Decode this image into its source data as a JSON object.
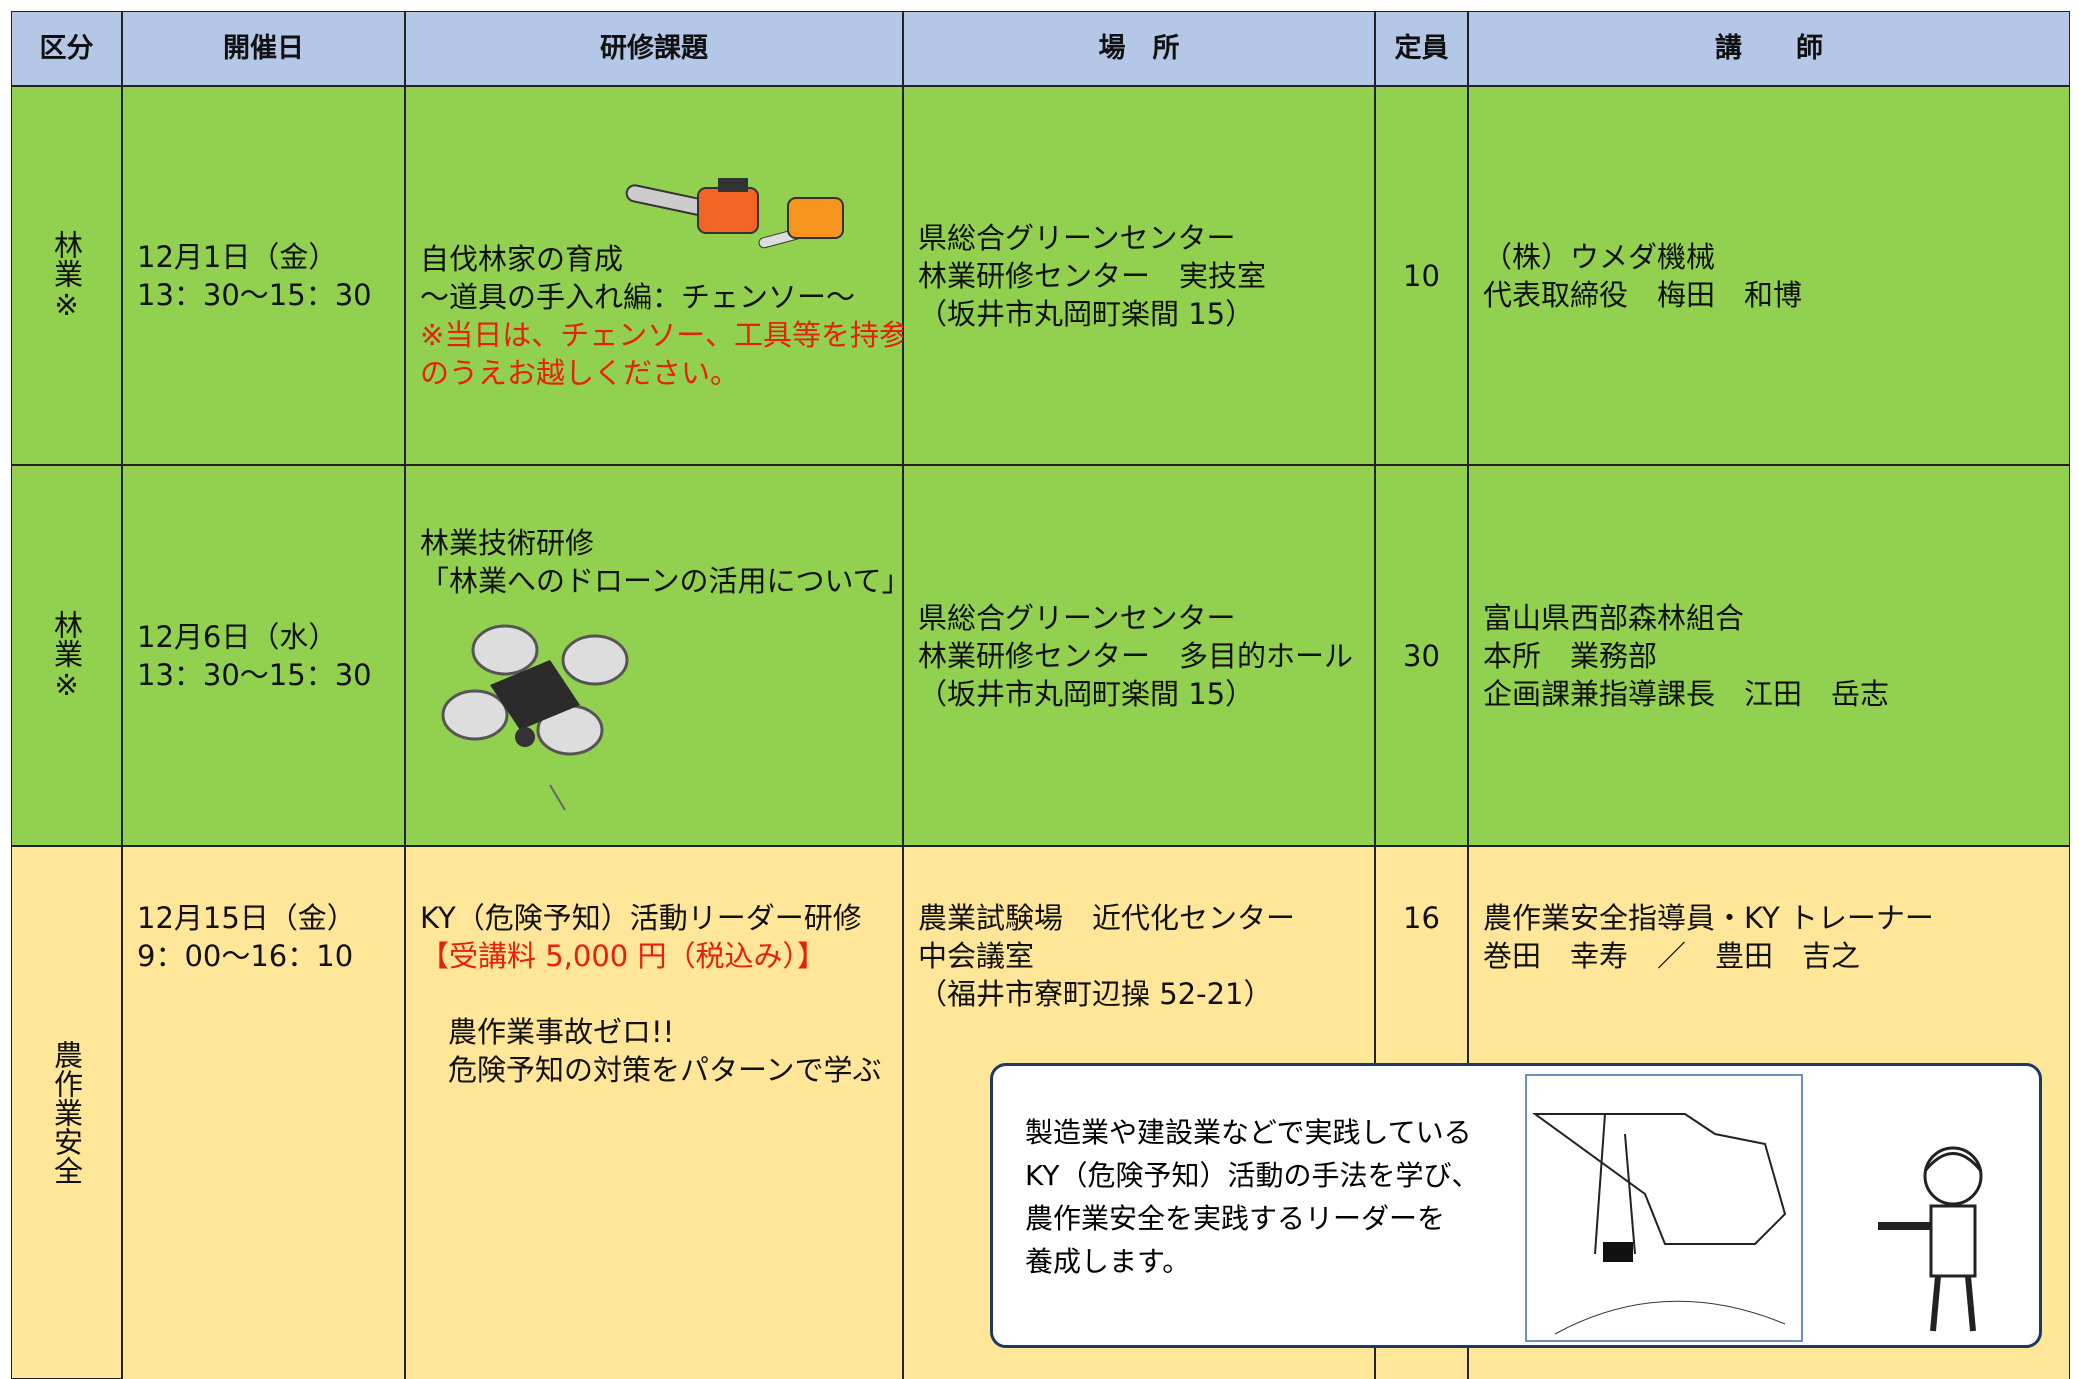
{
  "header": [
    "区分",
    "開催日",
    "研修課題",
    "場　所",
    "定員",
    "講　　師"
  ],
  "rows": [
    {
      "category": "林業※",
      "date": [
        "12月1日（金）",
        "13：30～15：30"
      ],
      "topic": [
        "自伐林家の育成",
        "～道具の手入れ編：チェンソー～"
      ],
      "note": [
        "※当日は、チェンソー、工具等を持参",
        "のうえお越しください。"
      ],
      "place": [
        "県総合グリーンセンター",
        "林業研修センター　実技室",
        "（坂井市丸岡町楽間 15）"
      ],
      "capacity": "10",
      "instructor": [
        "（株）ウメダ機械",
        "代表取締役　梅田　和博"
      ]
    },
    {
      "category": "林業※",
      "date": [
        "12月6日（水）",
        "13：30～15：30"
      ],
      "topic": [
        "林業技術研修",
        "「林業へのドローンの活用について」"
      ],
      "note": [],
      "place": [
        "県総合グリーンセンター",
        "林業研修センター　多目的ホール",
        "（坂井市丸岡町楽間 15）"
      ],
      "capacity": "30",
      "instructor": [
        "富山県西部森林組合",
        "本所　業務部",
        "企画課兼指導課長　江田　岳志"
      ]
    },
    {
      "category": "農作業安全",
      "date": [
        "12月15日（金）",
        "9：00～16：10"
      ],
      "topic": [
        "KY（危険予知）活動リーダー研修"
      ],
      "note": [
        "【受講料 5,000 円（税込み）】"
      ],
      "sub": [
        "農作業事故ゼロ!!",
        "危険予知の対策をパターンで学ぶ"
      ],
      "place": [
        "農業試験場　近代化センター",
        "中会議室",
        "（福井市寮町辺操 52-21）"
      ],
      "capacity": "16",
      "instructor": [
        "農作業安全指導員・KY トレーナー",
        "巻田　幸寿　／　豊田　吉之"
      ]
    }
  ],
  "callout": [
    "製造業や建設業などで実践している",
    "KY（危険予知）活動の手法を学び、",
    "農作業安全を実践するリーダーを",
    "養成します。"
  ]
}
